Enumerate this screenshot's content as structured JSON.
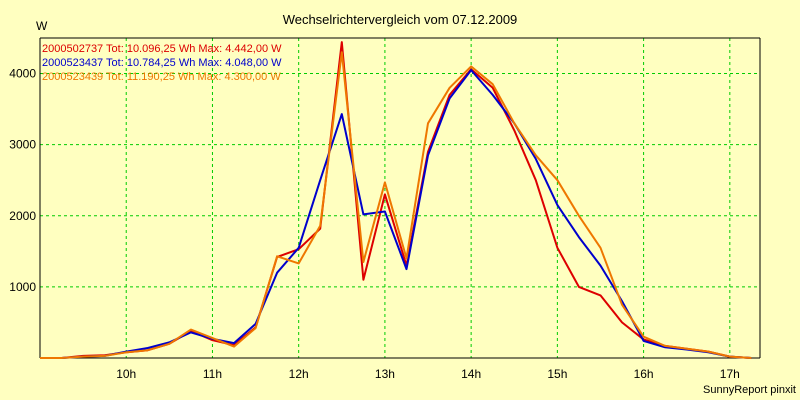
{
  "chart_data": {
    "type": "line",
    "title": "Wechselrichtervergleich vom 07.12.2009",
    "ylabel": "W",
    "xlabel": "",
    "credit": "SunnyReport pinxit",
    "xlim": [
      9.0,
      17.35
    ],
    "ylim": [
      0,
      4500
    ],
    "yticks": [
      1000,
      2000,
      3000,
      4000
    ],
    "xticks": [
      10,
      11,
      12,
      13,
      14,
      15,
      16,
      17
    ],
    "xtick_labels": [
      "10h",
      "11h",
      "12h",
      "13h",
      "14h",
      "15h",
      "16h",
      "17h"
    ],
    "grid": true,
    "grid_color": "#00cc00",
    "background": "#ffffc0",
    "legend_position": "top-left",
    "x": [
      9.0,
      9.25,
      9.5,
      9.75,
      10.0,
      10.25,
      10.5,
      10.75,
      11.0,
      11.25,
      11.5,
      11.75,
      12.0,
      12.25,
      12.5,
      12.75,
      13.0,
      13.25,
      13.5,
      13.75,
      14.0,
      14.25,
      14.5,
      14.75,
      15.0,
      15.25,
      15.5,
      15.75,
      16.0,
      16.25,
      16.5,
      16.75,
      17.0,
      17.25
    ],
    "series": [
      {
        "name": "2000502737 Tot: 10.096,25 Wh Max: 4.442,00 W",
        "color": "#dd0000",
        "values": [
          0,
          0,
          30,
          40,
          80,
          110,
          200,
          380,
          250,
          180,
          430,
          1420,
          1530,
          1820,
          4442,
          1100,
          2300,
          1300,
          2900,
          3700,
          4060,
          3800,
          3200,
          2500,
          1550,
          1000,
          880,
          500,
          260,
          170,
          130,
          90,
          20,
          0
        ]
      },
      {
        "name": "2000523437 Tot: 10.784,25 Wh Max: 4.048,00 W",
        "color": "#0000cc",
        "values": [
          0,
          0,
          20,
          30,
          90,
          140,
          220,
          360,
          270,
          210,
          480,
          1200,
          1550,
          2500,
          3430,
          2020,
          2060,
          1250,
          2850,
          3650,
          4048,
          3700,
          3300,
          2800,
          2150,
          1700,
          1300,
          800,
          240,
          150,
          120,
          80,
          20,
          0
        ]
      },
      {
        "name": "2000523439 Tot: 11.190,25 Wh Max: 4.300,00 W",
        "color": "#ee7700",
        "values": [
          0,
          0,
          20,
          30,
          80,
          110,
          200,
          400,
          280,
          160,
          420,
          1430,
          1330,
          1860,
          4300,
          1350,
          2470,
          1400,
          3300,
          3800,
          4100,
          3850,
          3300,
          2850,
          2500,
          2000,
          1550,
          750,
          300,
          170,
          130,
          90,
          20,
          0
        ]
      }
    ]
  }
}
